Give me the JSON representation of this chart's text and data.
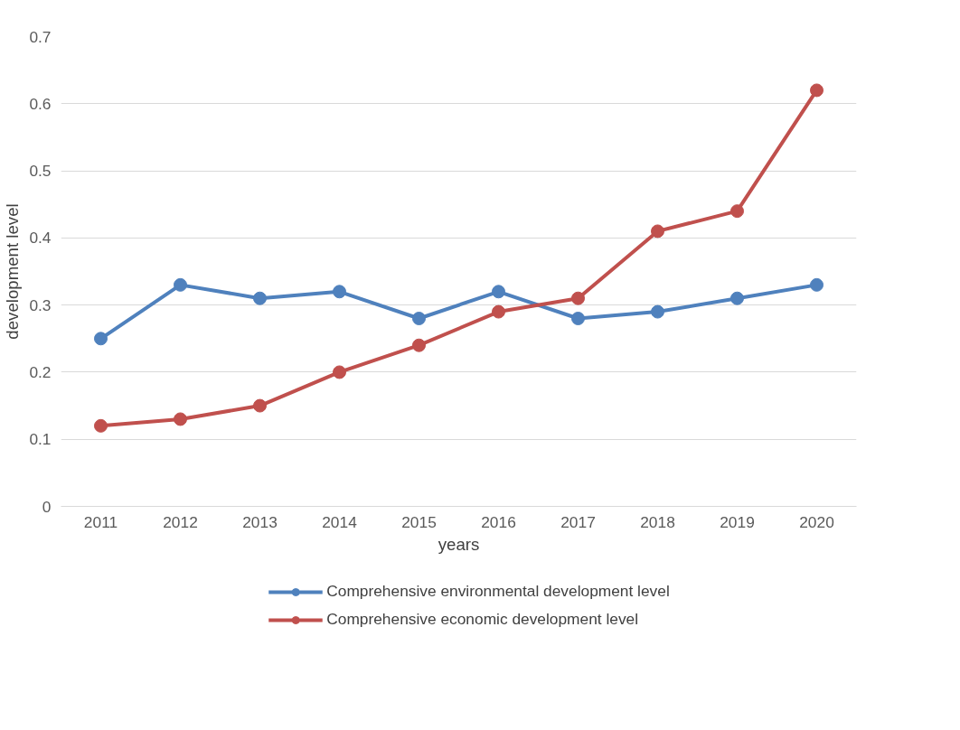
{
  "chart_data": {
    "type": "line",
    "xlabel": "years",
    "ylabel": "development level",
    "categories": [
      "2011",
      "2012",
      "2013",
      "2014",
      "2015",
      "2016",
      "2017",
      "2018",
      "2019",
      "2020"
    ],
    "series": [
      {
        "name": "Comprehensive environmental development level",
        "color": "#4f81bd",
        "values": [
          0.25,
          0.33,
          0.31,
          0.32,
          0.28,
          0.32,
          0.28,
          0.29,
          0.31,
          0.33
        ]
      },
      {
        "name": "Comprehensive economic development level",
        "color": "#c0504d",
        "values": [
          0.12,
          0.13,
          0.15,
          0.2,
          0.24,
          0.29,
          0.31,
          0.41,
          0.44,
          0.62
        ]
      }
    ],
    "ylim": [
      0,
      0.7
    ],
    "yticks": [
      0,
      0.1,
      0.2,
      0.3,
      0.4,
      0.5,
      0.6,
      0.7
    ],
    "grid": "y",
    "legend": "bottom",
    "marker": "circle",
    "line_style": "solid"
  }
}
